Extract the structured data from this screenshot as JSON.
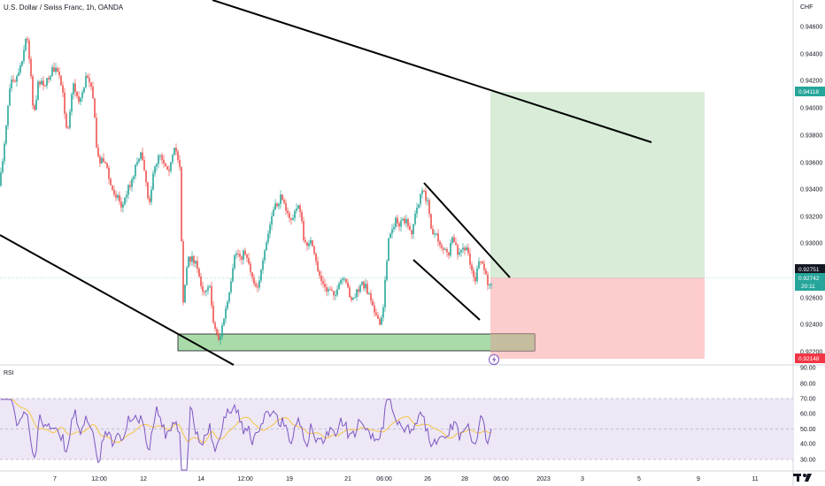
{
  "header": {
    "title": "U.S. Dollar / Swiss Franc, 1h, OANDA"
  },
  "price_axis": {
    "currency": "CHF",
    "labels": [
      "0.94600",
      "0.94400",
      "0.94200",
      "0.94000",
      "0.93800",
      "0.93600",
      "0.93400",
      "0.93200",
      "0.93000",
      "0.92600",
      "0.92400",
      "0.92200"
    ]
  },
  "price_tags": {
    "take_profit": {
      "value": "0.94118",
      "color": "#26a69a"
    },
    "last_high": {
      "value": "0.92751",
      "color": "#131722"
    },
    "current": {
      "value": "0.92742",
      "countdown": "20:11",
      "color": "#26a69a"
    },
    "stop_loss": {
      "value": "0.92148",
      "color": "#f23645"
    }
  },
  "rsi": {
    "label": "RSI",
    "axis_labels": [
      "90.00",
      "80.00",
      "70.00",
      "60.00",
      "50.00",
      "40.00",
      "30.00"
    ],
    "band_color": "#ede7f6",
    "line_color": "#7e57c2",
    "ma_color": "#f5c542"
  },
  "time_axis": {
    "labels": [
      "7",
      "12:00",
      "12",
      "14",
      "12:00",
      "19",
      "21",
      "06:00",
      "26",
      "28",
      "06:00",
      "2023",
      "3",
      "5",
      "9",
      "11"
    ]
  },
  "zones": {
    "profit_color": "#d8ecd8",
    "loss_color": "#fdcccc",
    "support_color": "#a9dba9"
  },
  "logo": {
    "icon": "tradingview-logo-icon"
  },
  "alert": {
    "icon": "lightning-icon"
  }
}
